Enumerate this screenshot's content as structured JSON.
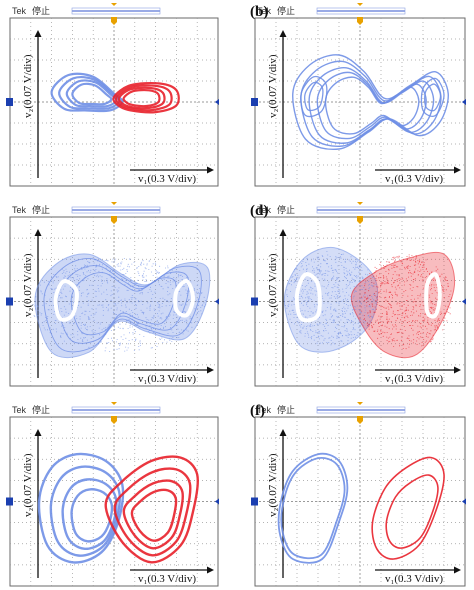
{
  "header": {
    "brand": "Tek",
    "status": "停止",
    "trigger_icon": "trigger-marker-icon",
    "channel_icon": "channel-1-marker-icon"
  },
  "axes": {
    "x_label": "v₁(0.3 V/div)",
    "y_label": "v₂(0.07 V/div)"
  },
  "colors": {
    "blue": "#6f8fe6",
    "red": "#e8202a",
    "grid": "#9a9a9a",
    "frame": "#6a6a6a",
    "marker": "#1b3fb0",
    "trigger": "#e8a100"
  },
  "panels": [
    {
      "label": "",
      "trace_colors": [
        "blue",
        "red"
      ]
    },
    {
      "label": "(b)",
      "trace_colors": [
        "blue"
      ]
    },
    {
      "label": "",
      "trace_colors": [
        "blue"
      ]
    },
    {
      "label": "(d)",
      "trace_colors": [
        "blue",
        "red"
      ]
    },
    {
      "label": "",
      "trace_colors": [
        "blue",
        "red"
      ]
    },
    {
      "label": "(f)",
      "trace_colors": [
        "blue",
        "red"
      ]
    }
  ],
  "chart_data": {
    "type": "scatter",
    "description_source": "Oscilloscope phase portraits v1-v2, 10 x 8 divisions",
    "x_axis": {
      "quantity": "v1",
      "scale": "0.3 V/div"
    },
    "y_axis": {
      "quantity": "v2",
      "scale": "0.07 V/div"
    },
    "grid": true
  }
}
